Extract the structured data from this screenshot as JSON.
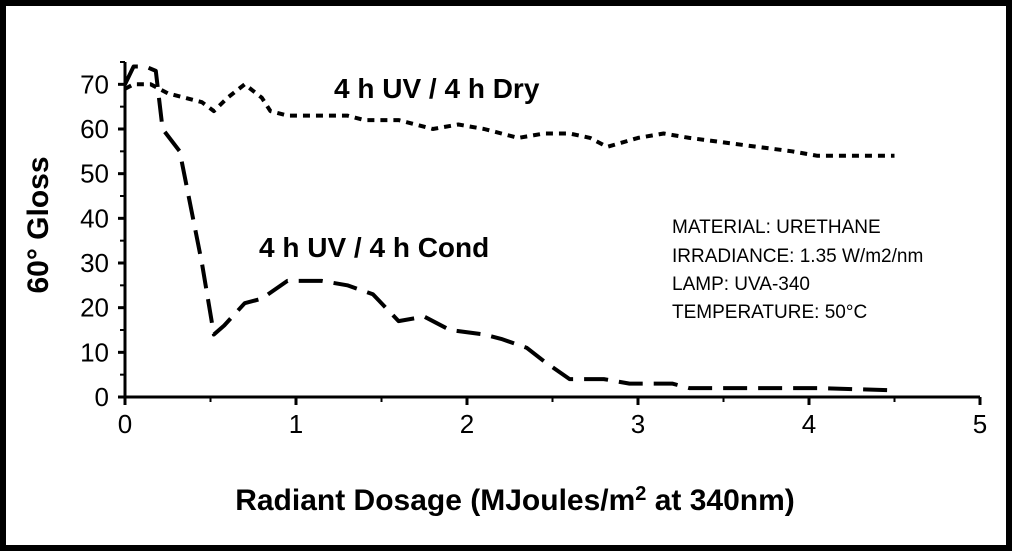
{
  "chart_data": {
    "type": "line",
    "ylabel": "60° Gloss",
    "xlabel_parts": {
      "before": "Radiant Dosage (MJoules/m",
      "superscript": "2",
      "after": " at 340nm)"
    },
    "xlim": [
      0,
      5
    ],
    "ylim": [
      0,
      75
    ],
    "x_ticks": [
      "0",
      "1",
      "2",
      "3",
      "4",
      "5"
    ],
    "y_ticks": [
      "0",
      "10",
      "20",
      "30",
      "40",
      "50",
      "60",
      "70"
    ],
    "grid": false,
    "series": [
      {
        "name": "4 h UV / 4 h Dry",
        "style": "dotted",
        "points": [
          [
            0,
            69
          ],
          [
            0.05,
            70
          ],
          [
            0.15,
            70
          ],
          [
            0.25,
            68
          ],
          [
            0.35,
            67
          ],
          [
            0.45,
            66
          ],
          [
            0.52,
            64
          ],
          [
            0.6,
            67
          ],
          [
            0.7,
            70
          ],
          [
            0.8,
            67
          ],
          [
            0.85,
            64
          ],
          [
            0.95,
            63
          ],
          [
            1.05,
            63
          ],
          [
            1.2,
            63
          ],
          [
            1.3,
            63
          ],
          [
            1.4,
            62
          ],
          [
            1.6,
            62
          ],
          [
            1.7,
            61
          ],
          [
            1.8,
            60
          ],
          [
            1.95,
            61
          ],
          [
            2.1,
            60
          ],
          [
            2.3,
            58
          ],
          [
            2.45,
            59
          ],
          [
            2.6,
            59
          ],
          [
            2.72,
            58
          ],
          [
            2.82,
            56
          ],
          [
            3.0,
            58
          ],
          [
            3.15,
            59
          ],
          [
            3.3,
            58
          ],
          [
            3.5,
            57
          ],
          [
            3.7,
            56
          ],
          [
            3.9,
            55
          ],
          [
            4.05,
            54
          ],
          [
            4.3,
            54
          ],
          [
            4.5,
            54
          ]
        ]
      },
      {
        "name": "4 h UV / 4 h Cond",
        "style": "dashed",
        "points": [
          [
            0,
            70
          ],
          [
            0.05,
            74
          ],
          [
            0.12,
            74
          ],
          [
            0.18,
            73
          ],
          [
            0.22,
            60
          ],
          [
            0.32,
            55
          ],
          [
            0.45,
            30
          ],
          [
            0.52,
            14
          ],
          [
            0.58,
            16
          ],
          [
            0.7,
            21
          ],
          [
            0.8,
            22
          ],
          [
            0.95,
            26
          ],
          [
            1.15,
            26
          ],
          [
            1.3,
            25
          ],
          [
            1.45,
            23
          ],
          [
            1.6,
            17
          ],
          [
            1.75,
            18
          ],
          [
            1.9,
            15
          ],
          [
            2.1,
            14
          ],
          [
            2.2,
            13
          ],
          [
            2.35,
            11
          ],
          [
            2.45,
            8
          ],
          [
            2.6,
            4
          ],
          [
            2.8,
            4
          ],
          [
            2.95,
            3
          ],
          [
            3.2,
            3
          ],
          [
            3.3,
            2
          ],
          [
            3.6,
            2
          ],
          [
            4.05,
            2
          ],
          [
            4.5,
            1.5
          ]
        ]
      }
    ],
    "annotations": [
      "MATERIAL: URETHANE",
      "IRRADIANCE: 1.35 W/m2/nm",
      "LAMP: UVA-340",
      "TEMPERATURE: 50°C"
    ]
  }
}
